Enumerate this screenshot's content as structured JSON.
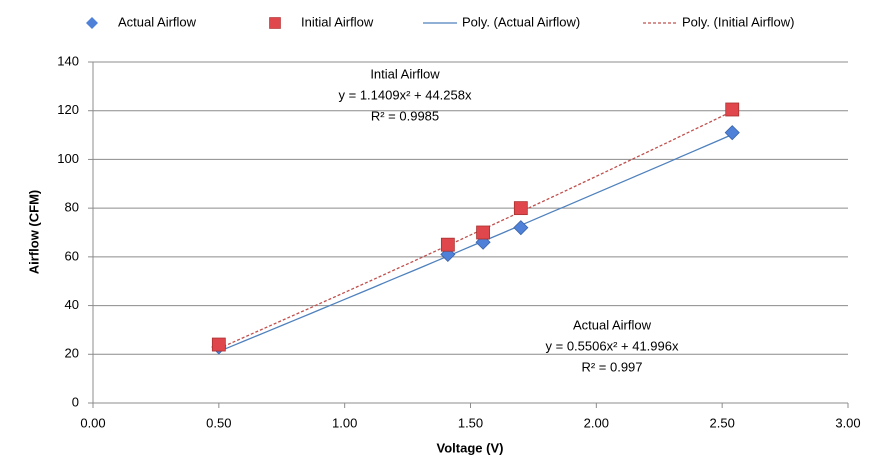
{
  "chart_data": {
    "type": "scatter",
    "x_label": "Voltage (V)",
    "y_label": "Airflow (CFM)",
    "series": [
      {
        "name": "Actual Airflow",
        "color": "#4f81d9",
        "marker": "diamond",
        "x": [
          0.5,
          1.41,
          1.55,
          1.7,
          2.54
        ],
        "values": [
          23,
          61,
          66,
          72,
          111
        ]
      },
      {
        "name": "Initial Airflow",
        "color": "#e0474c",
        "marker": "square",
        "x": [
          0.5,
          1.41,
          1.55,
          1.7,
          2.54
        ],
        "values": [
          24,
          65,
          70,
          80,
          120.5
        ]
      }
    ],
    "trendlines": [
      {
        "name": "Poly. (Actual Airflow)",
        "color": "#4f81bd",
        "dashed": false,
        "coefficients": [
          0.5506,
          41.996
        ],
        "label": "Actual Airflow",
        "equation": "y = 0.5506x² + 41.996x",
        "r_squared_label": "R² = 0.997"
      },
      {
        "name": "Poly. (Initial Airflow)",
        "color": "#c0504d",
        "dashed": true,
        "coefficients": [
          1.1409,
          44.258
        ],
        "label": "Intial Airflow",
        "equation": "y = 1.1409x² + 44.258x",
        "r_squared_label": "R² = 0.9985"
      }
    ],
    "xlim": [
      0,
      3
    ],
    "xticks": [
      {
        "value": 0,
        "label": "0.00"
      },
      {
        "value": 0.5,
        "label": "0.50"
      },
      {
        "value": 1,
        "label": "1.00"
      },
      {
        "value": 1.5,
        "label": "1.50"
      },
      {
        "value": 2,
        "label": "2.00"
      },
      {
        "value": 2.5,
        "label": "2.50"
      },
      {
        "value": 3,
        "label": "3.00"
      }
    ],
    "ylim": [
      0,
      140
    ],
    "yticks": [
      0,
      20,
      40,
      60,
      80,
      100,
      120,
      140
    ],
    "grid": true,
    "legend": "top"
  }
}
